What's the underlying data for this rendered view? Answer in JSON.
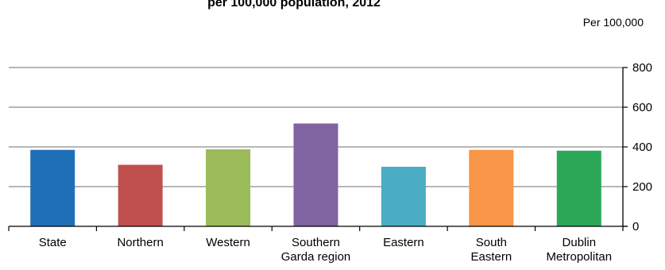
{
  "chart_data": {
    "type": "bar",
    "title": "per 100,000 population, 2012",
    "unit_label": "Per 100,000",
    "xlabel": "Garda region",
    "ylabel": "",
    "ylim": [
      0,
      800
    ],
    "yticks": [
      0,
      200,
      400,
      600,
      800
    ],
    "grid": true,
    "categories": [
      [
        "State"
      ],
      [
        "Northern"
      ],
      [
        "Western"
      ],
      [
        "Southern"
      ],
      [
        "Eastern"
      ],
      [
        "South",
        "Eastern"
      ],
      [
        "Dublin",
        "Metropolitan"
      ]
    ],
    "values": [
      385,
      310,
      388,
      518,
      300,
      385,
      381
    ],
    "colors": [
      "#1f6fb7",
      "#c0504d",
      "#9bbb59",
      "#8064a2",
      "#4bacc6",
      "#f79646",
      "#2aa858"
    ]
  }
}
